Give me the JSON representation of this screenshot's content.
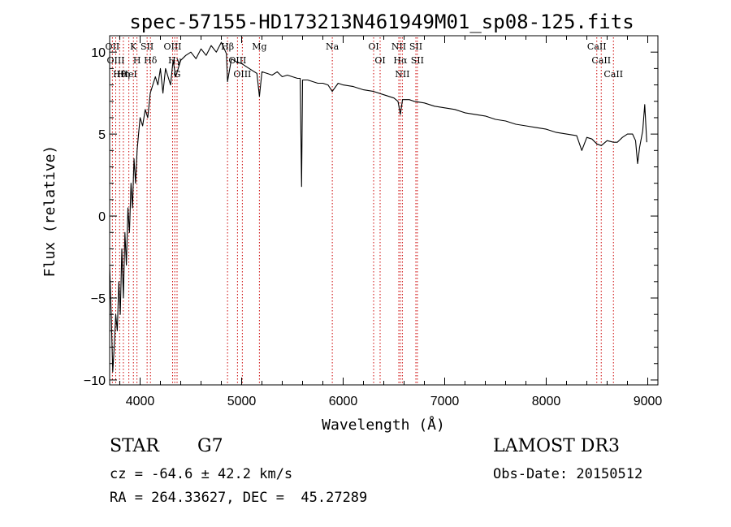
{
  "chart_data": {
    "type": "line",
    "title": "spec-57155-HD173213N461949M01_sp08-125.fits",
    "xlabel": "Wavelength (Å)",
    "ylabel": "Flux (relative)",
    "xlim": [
      3700,
      9100
    ],
    "ylim": [
      -10.3,
      11
    ],
    "xticks": [
      4000,
      5000,
      6000,
      7000,
      8000,
      9000
    ],
    "yticks": [
      -10,
      -5,
      0,
      5,
      10
    ],
    "grid": false,
    "line_color": "#000000",
    "marker_color": "#cc0000",
    "series": [
      {
        "name": "flux",
        "x": [
          3700,
          3715,
          3730,
          3745,
          3760,
          3775,
          3790,
          3805,
          3820,
          3835,
          3850,
          3865,
          3880,
          3895,
          3910,
          3925,
          3940,
          3955,
          3970,
          3985,
          4000,
          4025,
          4050,
          4075,
          4100,
          4125,
          4150,
          4175,
          4200,
          4225,
          4250,
          4275,
          4300,
          4325,
          4350,
          4375,
          4400,
          4450,
          4500,
          4550,
          4600,
          4650,
          4700,
          4750,
          4800,
          4850,
          4861,
          4900,
          4950,
          5000,
          5050,
          5100,
          5150,
          5175,
          5200,
          5250,
          5300,
          5350,
          5400,
          5450,
          5500,
          5550,
          5577,
          5590,
          5600,
          5650,
          5700,
          5750,
          5800,
          5850,
          5893,
          5950,
          6000,
          6100,
          6200,
          6300,
          6400,
          6500,
          6540,
          6563,
          6585,
          6650,
          6700,
          6800,
          6900,
          7000,
          7100,
          7200,
          7300,
          7400,
          7500,
          7600,
          7700,
          7800,
          7900,
          8000,
          8100,
          8200,
          8300,
          8350,
          8400,
          8450,
          8498,
          8542,
          8600,
          8662,
          8700,
          8750,
          8800,
          8850,
          8880,
          8900,
          8920,
          8950,
          8970,
          8990
        ],
        "y": [
          -3,
          -6,
          -9.5,
          -8,
          -6,
          -7,
          -4,
          -6,
          -2,
          -5,
          -1,
          -3,
          0.5,
          -1,
          2,
          0.5,
          3.5,
          2,
          4,
          5,
          6,
          5.5,
          6.5,
          6,
          7.5,
          8,
          8.5,
          8,
          9,
          7.5,
          9,
          8.5,
          8,
          9.5,
          8.5,
          9,
          9.5,
          9.8,
          10,
          9.6,
          10.2,
          9.8,
          10.4,
          10,
          10.6,
          9.9,
          8.2,
          9.6,
          9.4,
          9.3,
          9.1,
          8.9,
          8.7,
          7.3,
          8.8,
          8.7,
          8.6,
          8.8,
          8.5,
          8.6,
          8.5,
          8.4,
          8.4,
          1.8,
          8.3,
          8.3,
          8.2,
          8.1,
          8.1,
          8.0,
          7.6,
          8.1,
          8.0,
          7.9,
          7.7,
          7.6,
          7.4,
          7.2,
          7.0,
          6.2,
          7.1,
          7.1,
          7.0,
          6.9,
          6.7,
          6.6,
          6.5,
          6.3,
          6.2,
          6.1,
          5.9,
          5.8,
          5.6,
          5.5,
          5.4,
          5.3,
          5.1,
          5.0,
          4.9,
          4.0,
          4.8,
          4.7,
          4.4,
          4.3,
          4.6,
          4.5,
          4.5,
          4.8,
          5.0,
          5.0,
          4.6,
          3.2,
          4.2,
          5.2,
          6.8,
          4.5
        ]
      }
    ],
    "lines": [
      {
        "label": "Hθ",
        "wavelength": 3798
      },
      {
        "label": "OII",
        "wavelength": 3727
      },
      {
        "label": "OIII",
        "wavelength": 3760
      },
      {
        "label": "Hη",
        "wavelength": 3835
      },
      {
        "label": "HeI",
        "wavelength": 3889
      },
      {
        "label": "K",
        "wavelength": 3934
      },
      {
        "label": "H",
        "wavelength": 3969
      },
      {
        "label": "SII",
        "wavelength": 4069
      },
      {
        "label": "Hδ",
        "wavelength": 4102
      },
      {
        "label": "OIII",
        "wavelength": 4320
      },
      {
        "label": "Hγ",
        "wavelength": 4341
      },
      {
        "label": "G",
        "wavelength": 4364
      },
      {
        "label": "Hβ",
        "wavelength": 4861
      },
      {
        "label": "OIII",
        "wavelength": 4959
      },
      {
        "label": "OIII",
        "wavelength": 5007
      },
      {
        "label": "Mg",
        "wavelength": 5175
      },
      {
        "label": "Na",
        "wavelength": 5893
      },
      {
        "label": "OI",
        "wavelength": 6300
      },
      {
        "label": "OI",
        "wavelength": 6364
      },
      {
        "label": "Hα",
        "wavelength": 6563
      },
      {
        "label": "NII",
        "wavelength": 6548
      },
      {
        "label": "NII",
        "wavelength": 6583
      },
      {
        "label": "SII",
        "wavelength": 6716
      },
      {
        "label": "SII",
        "wavelength": 6731
      },
      {
        "label": "CaII",
        "wavelength": 8498
      },
      {
        "label": "CaII",
        "wavelength": 8542
      },
      {
        "label": "CaII",
        "wavelength": 8662
      }
    ]
  },
  "info": {
    "object_class": "STAR",
    "subclass": "G7",
    "survey": "LAMOST DR3",
    "redshift": "cz = -64.6 ± 42.2 km/s",
    "obs_date": "Obs-Date: 20150512",
    "coords": "RA = 264.33627, DEC =  45.27289"
  }
}
